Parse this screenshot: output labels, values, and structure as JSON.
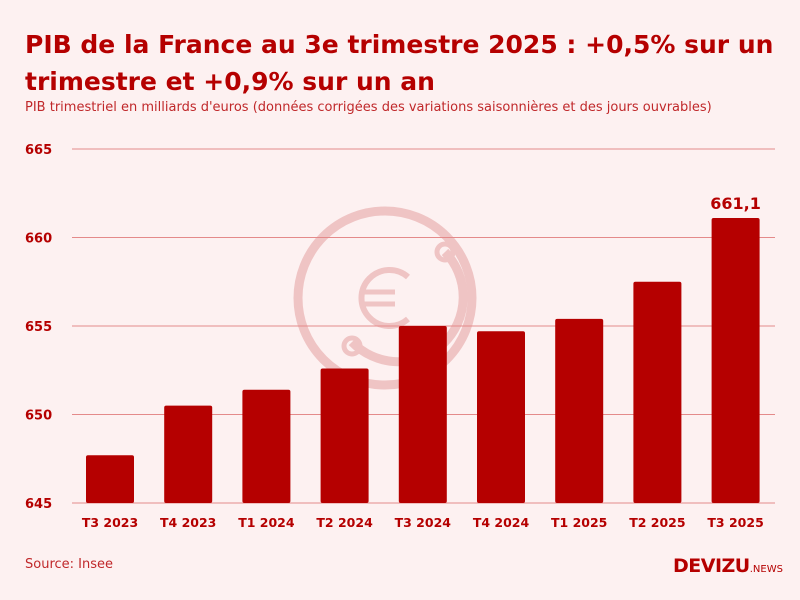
{
  "header": {
    "title": "PIB de la France au 3e trimestre 2025 : +0,5% sur un trimestre et +0,9% sur un an",
    "subtitle": "PIB trimestriel en milliards d'euros (données corrigées des variations saisonnières et des jours ouvrables)"
  },
  "footer": {
    "source": "Source: Insee",
    "logo_main": "DEVIZU",
    "logo_suffix": ".NEWS"
  },
  "colors": {
    "bar": "#b50000",
    "background": "#fdf1f1",
    "grid": "#e48a8a",
    "watermark": "#efc4c4"
  },
  "chart_data": {
    "type": "bar",
    "categories": [
      "T3 2023",
      "T4 2023",
      "T1 2024",
      "T2 2024",
      "T3 2024",
      "T4 2024",
      "T1 2025",
      "T2 2025",
      "T3 2025"
    ],
    "values": [
      647.7,
      650.5,
      651.4,
      652.6,
      655.0,
      654.7,
      655.4,
      657.5,
      661.1
    ],
    "data_labels": [
      {
        "category": "T3 2025",
        "text": "661,1"
      }
    ],
    "yticks": [
      "645",
      "650",
      "655",
      "660",
      "665"
    ],
    "ylim": [
      645,
      665
    ],
    "grid": true,
    "xlabel": "",
    "ylabel": ""
  }
}
